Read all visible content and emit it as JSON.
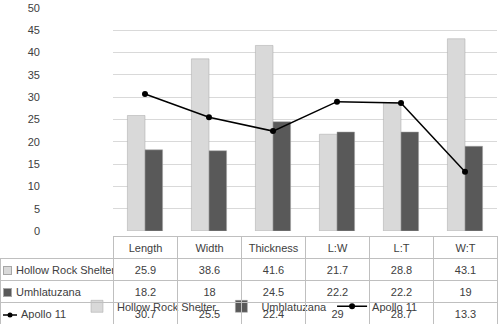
{
  "chart_data": {
    "type": "bar",
    "categories": [
      "Length",
      "Width",
      "Thickness",
      "L:W",
      "L:T",
      "W:T"
    ],
    "series": [
      {
        "name": "Hollow Rock Shelter",
        "type": "bar",
        "color": "#d9d9d9",
        "values": [
          25.9,
          38.6,
          41.6,
          21.7,
          28.8,
          43.1
        ]
      },
      {
        "name": "Umhlatuzana",
        "type": "bar",
        "color": "#595959",
        "values": [
          18.2,
          18,
          24.5,
          22.2,
          22.2,
          19
        ]
      },
      {
        "name": "Apollo 11",
        "type": "line",
        "color": "#000000",
        "marker": "circle",
        "values": [
          30.7,
          25.5,
          22.4,
          29,
          28.7,
          13.3
        ]
      }
    ],
    "ylim": [
      0,
      50
    ],
    "yticks": [
      0,
      5,
      10,
      15,
      20,
      25,
      30,
      35,
      40,
      45,
      50
    ],
    "grid": true,
    "legend": "bottom",
    "tick_labels": "y",
    "data_labels": true
  }
}
